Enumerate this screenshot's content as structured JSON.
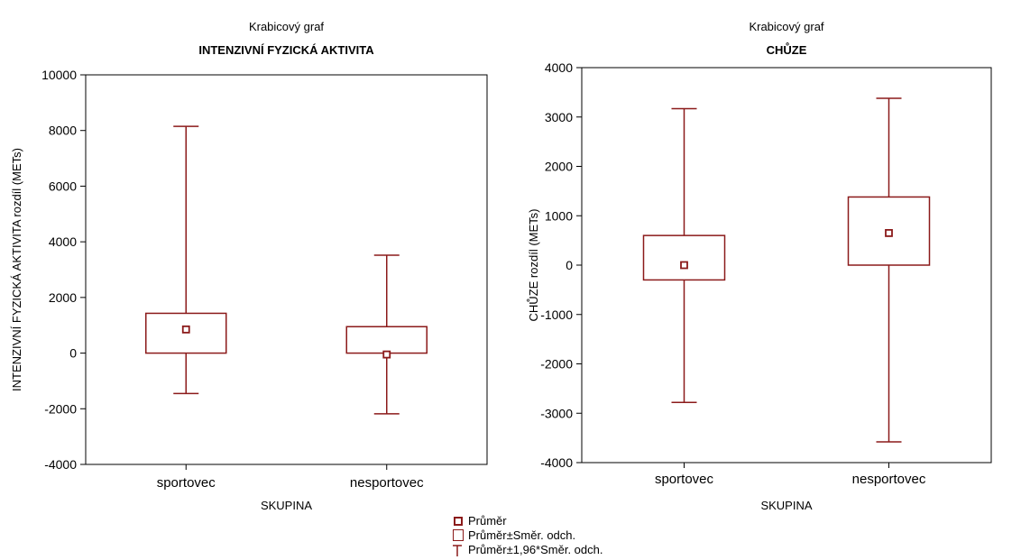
{
  "colors": {
    "series": "#8b1a1a",
    "background": "#ffffff"
  },
  "chart_data": [
    {
      "type": "box",
      "title": "Krabicový graf",
      "subtitle": "INTENZIVNÍ FYZICKÁ AKTIVITA",
      "xlabel": "SKUPINA",
      "ylabel": "INTENZIVNÍ FYZICKÁ AKTIVITA rozdíl (METs)",
      "ylim": [
        -4000,
        10000
      ],
      "yticks": [
        -4000,
        -2000,
        0,
        2000,
        4000,
        6000,
        8000,
        10000
      ],
      "yticklabels": [
        "-4000",
        "-2000",
        "0",
        "2000",
        "4000",
        "6000",
        "8000",
        "10000"
      ],
      "categories": [
        "sportovec",
        "nesportovec"
      ],
      "boxes": [
        {
          "mean": 850,
          "box_low": 0,
          "box_high": 1430,
          "whisker_low": -1450,
          "whisker_high": 8150
        },
        {
          "mean": -50,
          "box_low": 0,
          "box_high": 950,
          "whisker_low": -2180,
          "whisker_high": 3520
        }
      ],
      "grid": false
    },
    {
      "type": "box",
      "title": "Krabicový graf",
      "subtitle": "CHŮZE",
      "xlabel": "SKUPINA",
      "ylabel": "CHŮZE rozdíl (METs)",
      "ylim": [
        -4000,
        4000
      ],
      "yticks": [
        -4000,
        -3000,
        -2000,
        -1000,
        0,
        1000,
        2000,
        3000,
        4000
      ],
      "yticklabels": [
        "-4000",
        "-3000",
        "-2000",
        "-1000",
        "0",
        "1000",
        "2000",
        "3000",
        "4000"
      ],
      "categories": [
        "sportovec",
        "nesportovec"
      ],
      "boxes": [
        {
          "mean": 0,
          "box_low": -300,
          "box_high": 600,
          "whisker_low": -2780,
          "whisker_high": 3170
        },
        {
          "mean": 650,
          "box_low": 0,
          "box_high": 1380,
          "whisker_low": -3580,
          "whisker_high": 3380
        }
      ],
      "grid": false
    }
  ],
  "legend": {
    "items": [
      {
        "symbol": "mean-marker",
        "label": "Průměr"
      },
      {
        "symbol": "box",
        "label": "Průměr±Směr. odch."
      },
      {
        "symbol": "whisker",
        "label": "Průměr±1,96*Směr. odch."
      }
    ]
  }
}
